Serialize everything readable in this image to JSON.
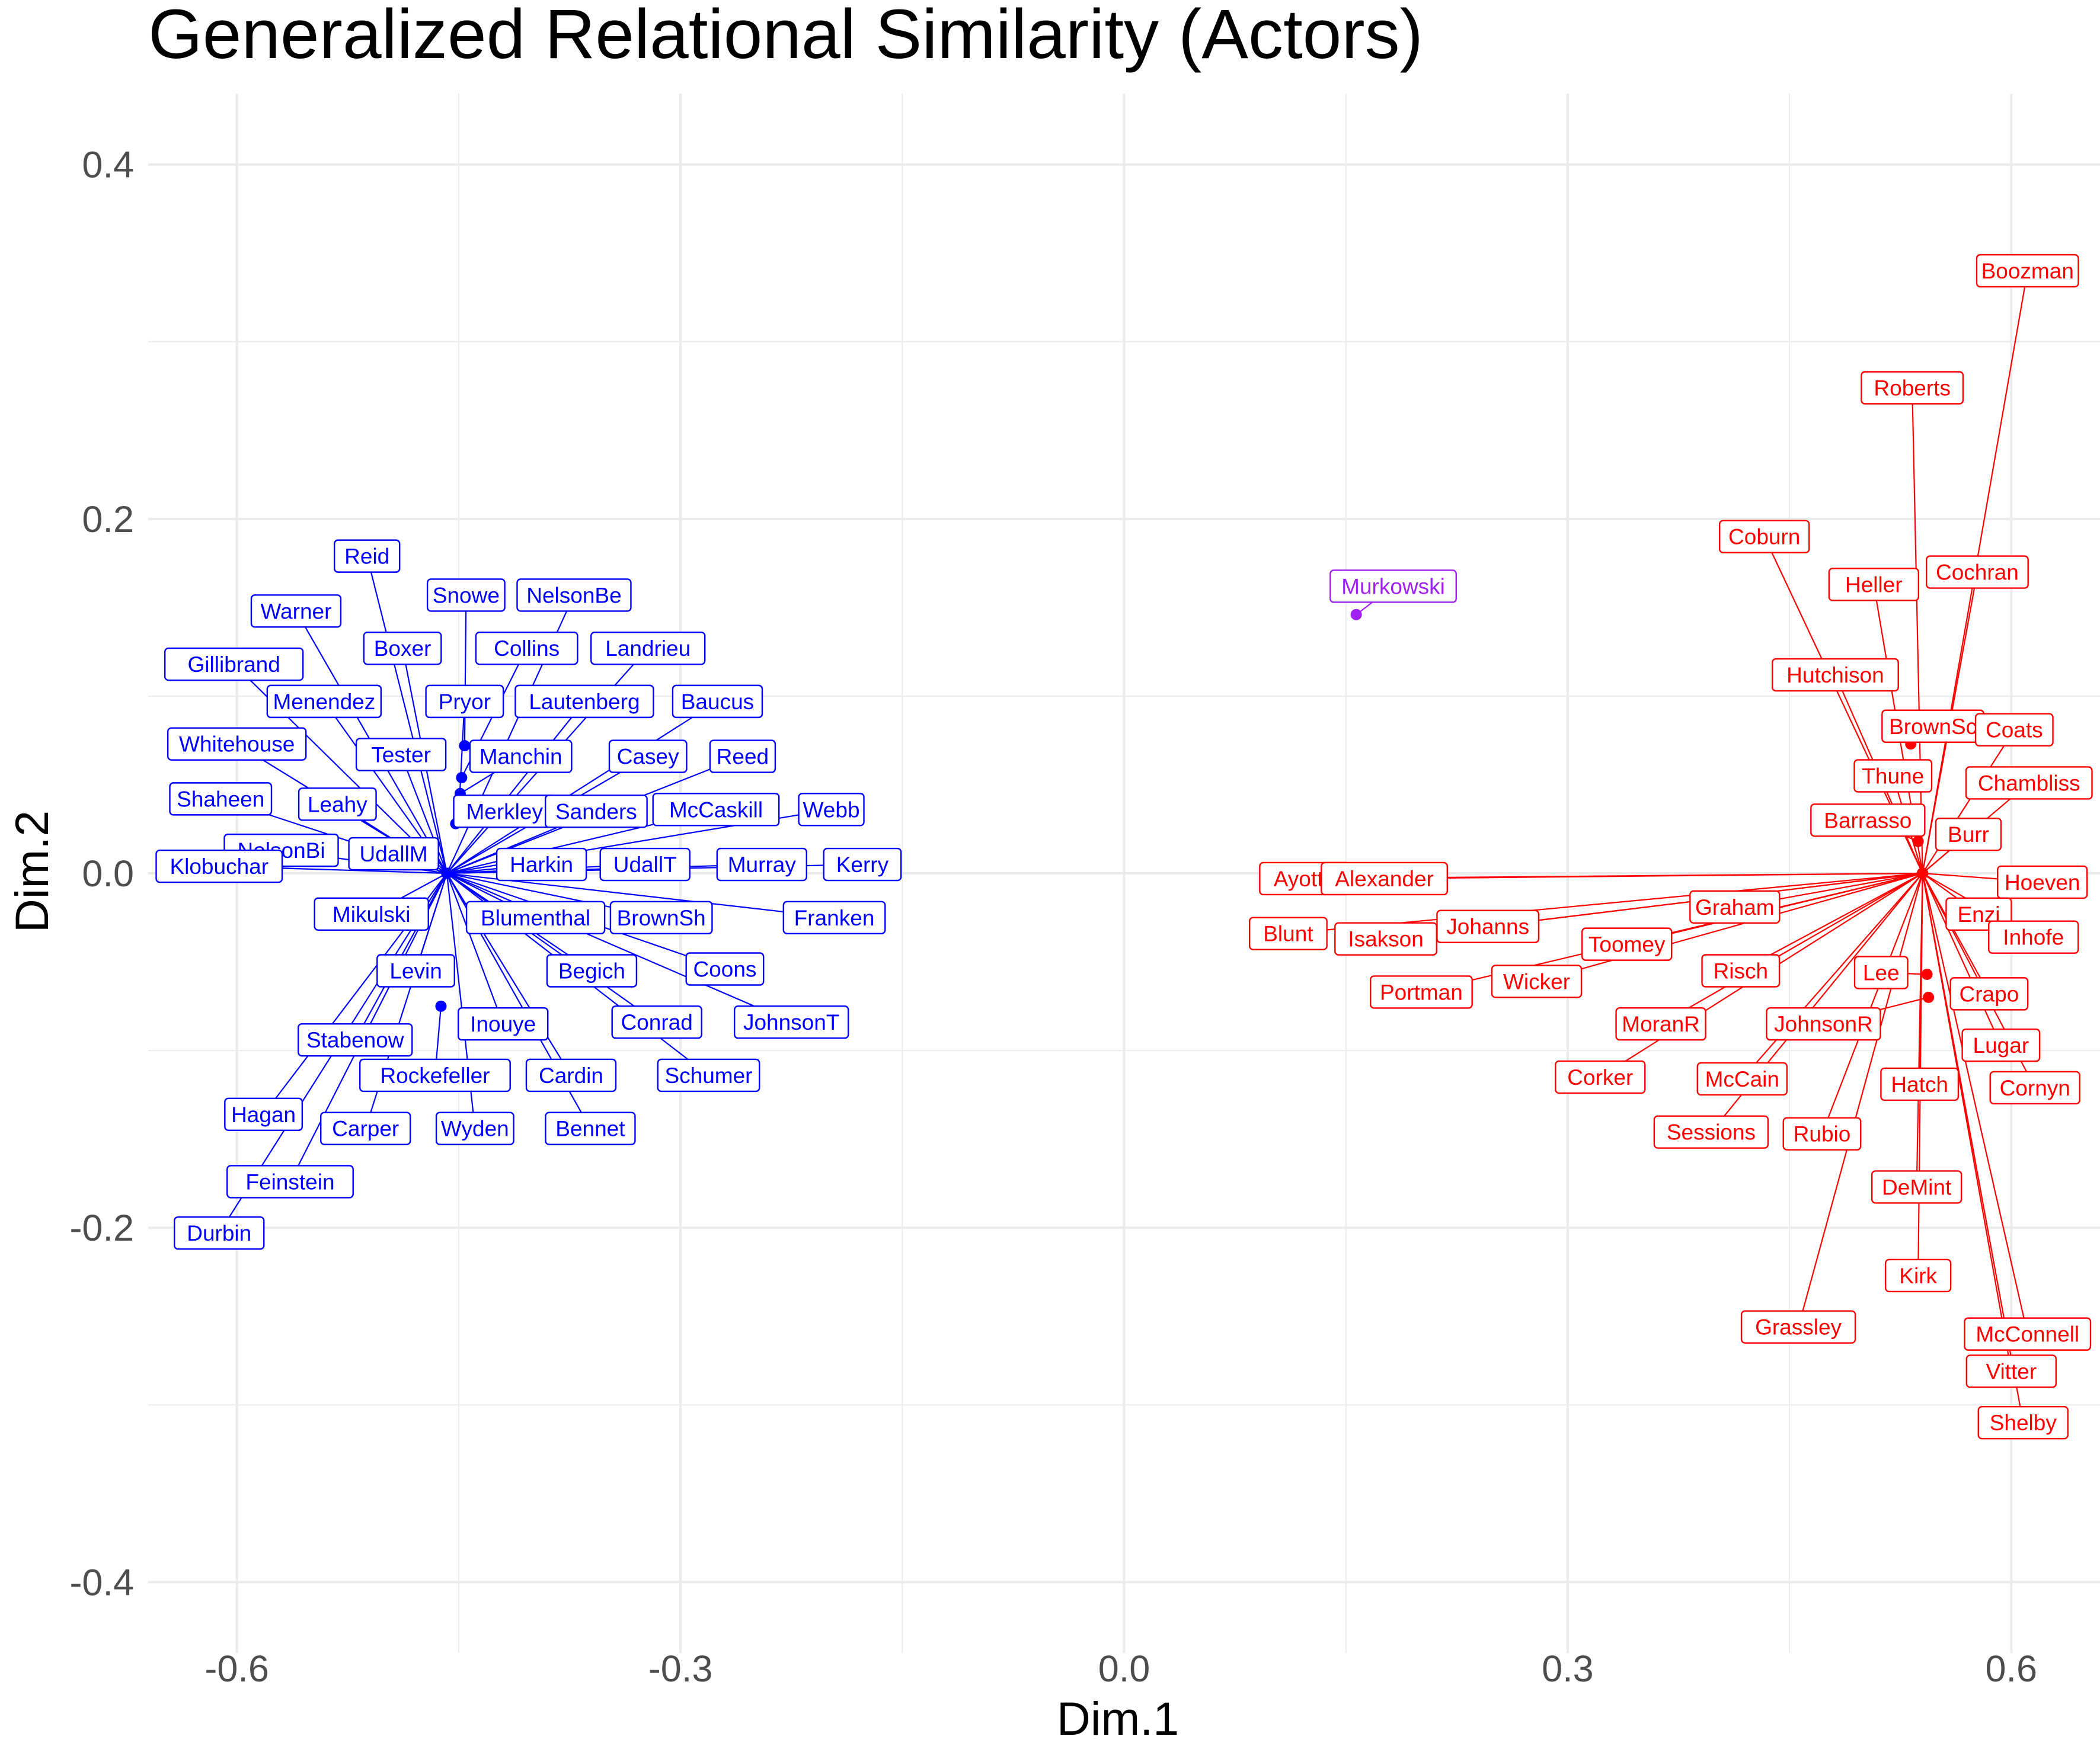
{
  "chart_data": {
    "type": "scatter",
    "title": "Generalized Relational Similarity (Actors)",
    "xlabel": "Dim.1",
    "ylabel": "Dim.2",
    "xlim": [
      -0.66,
      0.66
    ],
    "ylim": [
      -0.44,
      0.44
    ],
    "x_ticks": [
      "-0.6",
      "-0.3",
      "0.0",
      "0.3",
      "0.6"
    ],
    "y_ticks": [
      "0.4",
      "0.2",
      "0.0",
      "-0.2",
      "-0.4"
    ],
    "grid": true,
    "colors": {
      "dem": "#0000ff",
      "rep": "#ff0000",
      "ind": "#a020f0",
      "grid": "#ebebeb"
    },
    "series": [
      {
        "group": "dem",
        "points": [
          {
            "label": "Reid",
            "x": -0.458,
            "y": 0.0,
            "lx": -0.512,
            "ly": 0.179
          },
          {
            "label": "Snowe",
            "x": -0.446,
            "y": 0.072,
            "lx": -0.445,
            "ly": 0.157
          },
          {
            "label": "NelsonBe",
            "x": -0.458,
            "y": 0.0,
            "lx": -0.372,
            "ly": 0.157
          },
          {
            "label": "Warner",
            "x": -0.458,
            "y": 0.0,
            "lx": -0.56,
            "ly": 0.148
          },
          {
            "label": "Boxer",
            "x": -0.458,
            "y": 0.0,
            "lx": -0.488,
            "ly": 0.127
          },
          {
            "label": "Collins",
            "x": -0.448,
            "y": 0.054,
            "lx": -0.404,
            "ly": 0.127
          },
          {
            "label": "Landrieu",
            "x": -0.458,
            "y": 0.0,
            "lx": -0.322,
            "ly": 0.127
          },
          {
            "label": "Gillibrand",
            "x": -0.458,
            "y": 0.0,
            "lx": -0.602,
            "ly": 0.118
          },
          {
            "label": "Menendez",
            "x": -0.458,
            "y": 0.0,
            "lx": -0.541,
            "ly": 0.097
          },
          {
            "label": "Pryor",
            "x": -0.45,
            "y": 0.033,
            "lx": -0.446,
            "ly": 0.097
          },
          {
            "label": "Lautenberg",
            "x": -0.458,
            "y": 0.0,
            "lx": -0.365,
            "ly": 0.097
          },
          {
            "label": "Baucus",
            "x": -0.458,
            "y": 0.0,
            "lx": -0.275,
            "ly": 0.097
          },
          {
            "label": "Whitehouse",
            "x": -0.458,
            "y": 0.0,
            "lx": -0.6,
            "ly": 0.073
          },
          {
            "label": "Tester",
            "x": -0.458,
            "y": 0.0,
            "lx": -0.489,
            "ly": 0.067
          },
          {
            "label": "Manchin",
            "x": -0.449,
            "y": 0.045,
            "lx": -0.408,
            "ly": 0.066
          },
          {
            "label": "Casey",
            "x": -0.458,
            "y": 0.0,
            "lx": -0.322,
            "ly": 0.066
          },
          {
            "label": "Reed",
            "x": -0.458,
            "y": 0.0,
            "lx": -0.258,
            "ly": 0.066
          },
          {
            "label": "Shaheen",
            "x": -0.458,
            "y": 0.0,
            "lx": -0.611,
            "ly": 0.042
          },
          {
            "label": "Leahy",
            "x": -0.458,
            "y": 0.0,
            "lx": -0.532,
            "ly": 0.039
          },
          {
            "label": "Merkley",
            "x": -0.452,
            "y": 0.028,
            "lx": -0.419,
            "ly": 0.035
          },
          {
            "label": "Sanders",
            "x": -0.458,
            "y": 0.0,
            "lx": -0.357,
            "ly": 0.035
          },
          {
            "label": "McCaskill",
            "x": -0.458,
            "y": 0.0,
            "lx": -0.276,
            "ly": 0.036
          },
          {
            "label": "Webb",
            "x": -0.458,
            "y": 0.0,
            "lx": -0.198,
            "ly": 0.036
          },
          {
            "label": "NelsonBi",
            "x": -0.458,
            "y": 0.0,
            "lx": -0.57,
            "ly": 0.013
          },
          {
            "label": "UdallM",
            "x": -0.458,
            "y": 0.0,
            "lx": -0.494,
            "ly": 0.011
          },
          {
            "label": "Klobuchar",
            "x": -0.458,
            "y": 0.0,
            "lx": -0.612,
            "ly": 0.004
          },
          {
            "label": "Harkin",
            "x": -0.458,
            "y": 0.0,
            "lx": -0.394,
            "ly": 0.005
          },
          {
            "label": "UdallT",
            "x": -0.458,
            "y": 0.0,
            "lx": -0.324,
            "ly": 0.005
          },
          {
            "label": "Murray",
            "x": -0.458,
            "y": 0.0,
            "lx": -0.245,
            "ly": 0.005
          },
          {
            "label": "Kerry",
            "x": -0.458,
            "y": 0.0,
            "lx": -0.177,
            "ly": 0.005
          },
          {
            "label": "Mikulski",
            "x": -0.458,
            "y": 0.0,
            "lx": -0.509,
            "ly": -0.023
          },
          {
            "label": "Blumenthal",
            "x": -0.458,
            "y": 0.0,
            "lx": -0.398,
            "ly": -0.025
          },
          {
            "label": "BrownSh",
            "x": -0.458,
            "y": 0.0,
            "lx": -0.313,
            "ly": -0.025
          },
          {
            "label": "Franken",
            "x": -0.458,
            "y": 0.0,
            "lx": -0.196,
            "ly": -0.025
          },
          {
            "label": "Levin",
            "x": -0.458,
            "y": 0.0,
            "lx": -0.479,
            "ly": -0.055
          },
          {
            "label": "Begich",
            "x": -0.458,
            "y": 0.0,
            "lx": -0.36,
            "ly": -0.055
          },
          {
            "label": "Coons",
            "x": -0.458,
            "y": 0.0,
            "lx": -0.27,
            "ly": -0.054
          },
          {
            "label": "Inouye",
            "x": -0.458,
            "y": 0.0,
            "lx": -0.42,
            "ly": -0.085
          },
          {
            "label": "Conrad",
            "x": -0.458,
            "y": 0.0,
            "lx": -0.316,
            "ly": -0.084
          },
          {
            "label": "JohnsonT",
            "x": -0.458,
            "y": 0.0,
            "lx": -0.225,
            "ly": -0.084
          },
          {
            "label": "Stabenow",
            "x": -0.458,
            "y": 0.0,
            "lx": -0.52,
            "ly": -0.094
          },
          {
            "label": "Rockefeller",
            "x": -0.462,
            "y": -0.075,
            "lx": -0.466,
            "ly": -0.114
          },
          {
            "label": "Cardin",
            "x": -0.458,
            "y": 0.0,
            "lx": -0.374,
            "ly": -0.114
          },
          {
            "label": "Schumer",
            "x": -0.458,
            "y": 0.0,
            "lx": -0.281,
            "ly": -0.114
          },
          {
            "label": "Hagan",
            "x": -0.458,
            "y": 0.0,
            "lx": -0.582,
            "ly": -0.136
          },
          {
            "label": "Carper",
            "x": -0.458,
            "y": 0.0,
            "lx": -0.513,
            "ly": -0.144
          },
          {
            "label": "Wyden",
            "x": -0.458,
            "y": 0.0,
            "lx": -0.439,
            "ly": -0.144
          },
          {
            "label": "Bennet",
            "x": -0.458,
            "y": 0.0,
            "lx": -0.361,
            "ly": -0.144
          },
          {
            "label": "Feinstein",
            "x": -0.458,
            "y": 0.0,
            "lx": -0.564,
            "ly": -0.174
          },
          {
            "label": "Durbin",
            "x": -0.458,
            "y": 0.0,
            "lx": -0.612,
            "ly": -0.203
          }
        ]
      },
      {
        "group": "rep",
        "points": [
          {
            "label": "Boozman",
            "x": 0.54,
            "y": 0.0,
            "lx": 0.611,
            "ly": 0.34
          },
          {
            "label": "Roberts",
            "x": 0.54,
            "y": 0.0,
            "lx": 0.533,
            "ly": 0.274
          },
          {
            "label": "Coburn",
            "x": 0.54,
            "y": 0.0,
            "lx": 0.433,
            "ly": 0.19
          },
          {
            "label": "Cochran",
            "x": 0.54,
            "y": 0.0,
            "lx": 0.577,
            "ly": 0.17
          },
          {
            "label": "Heller",
            "x": 0.54,
            "y": 0.0,
            "lx": 0.507,
            "ly": 0.163
          },
          {
            "label": "Hutchison",
            "x": 0.54,
            "y": 0.0,
            "lx": 0.481,
            "ly": 0.112
          },
          {
            "label": "BrownSc",
            "x": 0.532,
            "y": 0.073,
            "lx": 0.547,
            "ly": 0.083
          },
          {
            "label": "Coats",
            "x": 0.54,
            "y": 0.0,
            "lx": 0.602,
            "ly": 0.081
          },
          {
            "label": "Thune",
            "x": 0.54,
            "y": 0.0,
            "lx": 0.52,
            "ly": 0.055
          },
          {
            "label": "Chambliss",
            "x": 0.54,
            "y": 0.0,
            "lx": 0.612,
            "ly": 0.051
          },
          {
            "label": "Barrasso",
            "x": 0.537,
            "y": 0.018,
            "lx": 0.503,
            "ly": 0.03
          },
          {
            "label": "Burr",
            "x": 0.54,
            "y": 0.0,
            "lx": 0.571,
            "ly": 0.022
          },
          {
            "label": "Ayotte",
            "x": 0.54,
            "y": 0.0,
            "lx": 0.122,
            "ly": -0.003
          },
          {
            "label": "Alexander",
            "x": 0.54,
            "y": 0.0,
            "lx": 0.176,
            "ly": -0.003
          },
          {
            "label": "Hoeven",
            "x": 0.54,
            "y": 0.0,
            "lx": 0.621,
            "ly": -0.005
          },
          {
            "label": "Graham",
            "x": 0.54,
            "y": 0.0,
            "lx": 0.413,
            "ly": -0.019
          },
          {
            "label": "Enzi",
            "x": 0.54,
            "y": 0.0,
            "lx": 0.578,
            "ly": -0.023
          },
          {
            "label": "Johanns",
            "x": 0.54,
            "y": 0.0,
            "lx": 0.246,
            "ly": -0.03
          },
          {
            "label": "Inhofe",
            "x": 0.54,
            "y": 0.0,
            "lx": 0.615,
            "ly": -0.036
          },
          {
            "label": "Blunt",
            "x": 0.54,
            "y": 0.0,
            "lx": 0.111,
            "ly": -0.034
          },
          {
            "label": "Isakson",
            "x": 0.54,
            "y": 0.0,
            "lx": 0.177,
            "ly": -0.037
          },
          {
            "label": "Toomey",
            "x": 0.54,
            "y": 0.0,
            "lx": 0.34,
            "ly": -0.04
          },
          {
            "label": "Risch",
            "x": 0.54,
            "y": 0.0,
            "lx": 0.417,
            "ly": -0.055
          },
          {
            "label": "Lee",
            "x": 0.543,
            "y": -0.057,
            "lx": 0.512,
            "ly": -0.056
          },
          {
            "label": "Wicker",
            "x": 0.54,
            "y": 0.0,
            "lx": 0.279,
            "ly": -0.061
          },
          {
            "label": "Portman",
            "x": 0.54,
            "y": 0.0,
            "lx": 0.201,
            "ly": -0.067
          },
          {
            "label": "Crapo",
            "x": 0.54,
            "y": 0.0,
            "lx": 0.585,
            "ly": -0.068
          },
          {
            "label": "MoranR",
            "x": 0.54,
            "y": 0.0,
            "lx": 0.363,
            "ly": -0.085
          },
          {
            "label": "JohnsonR",
            "x": 0.544,
            "y": -0.07,
            "lx": 0.473,
            "ly": -0.085
          },
          {
            "label": "Lugar",
            "x": 0.54,
            "y": 0.0,
            "lx": 0.593,
            "ly": -0.097
          },
          {
            "label": "Corker",
            "x": 0.54,
            "y": 0.0,
            "lx": 0.322,
            "ly": -0.115
          },
          {
            "label": "McCain",
            "x": 0.54,
            "y": 0.0,
            "lx": 0.418,
            "ly": -0.116
          },
          {
            "label": "Hatch",
            "x": 0.54,
            "y": 0.0,
            "lx": 0.538,
            "ly": -0.119
          },
          {
            "label": "Cornyn",
            "x": 0.54,
            "y": 0.0,
            "lx": 0.616,
            "ly": -0.121
          },
          {
            "label": "Sessions",
            "x": 0.54,
            "y": 0.0,
            "lx": 0.397,
            "ly": -0.146
          },
          {
            "label": "Rubio",
            "x": 0.54,
            "y": 0.0,
            "lx": 0.472,
            "ly": -0.147
          },
          {
            "label": "DeMint",
            "x": 0.54,
            "y": 0.0,
            "lx": 0.536,
            "ly": -0.177
          },
          {
            "label": "Kirk",
            "x": 0.54,
            "y": 0.0,
            "lx": 0.537,
            "ly": -0.227
          },
          {
            "label": "Grassley",
            "x": 0.54,
            "y": 0.0,
            "lx": 0.456,
            "ly": -0.256
          },
          {
            "label": "McConnell",
            "x": 0.54,
            "y": 0.0,
            "lx": 0.611,
            "ly": -0.26
          },
          {
            "label": "Vitter",
            "x": 0.54,
            "y": 0.0,
            "lx": 0.6,
            "ly": -0.281
          },
          {
            "label": "Shelby",
            "x": 0.54,
            "y": 0.0,
            "lx": 0.608,
            "ly": -0.31
          }
        ]
      },
      {
        "group": "ind",
        "points": [
          {
            "label": "Murkowski",
            "x": 0.157,
            "y": 0.146,
            "lx": 0.182,
            "ly": 0.162
          }
        ]
      }
    ]
  }
}
